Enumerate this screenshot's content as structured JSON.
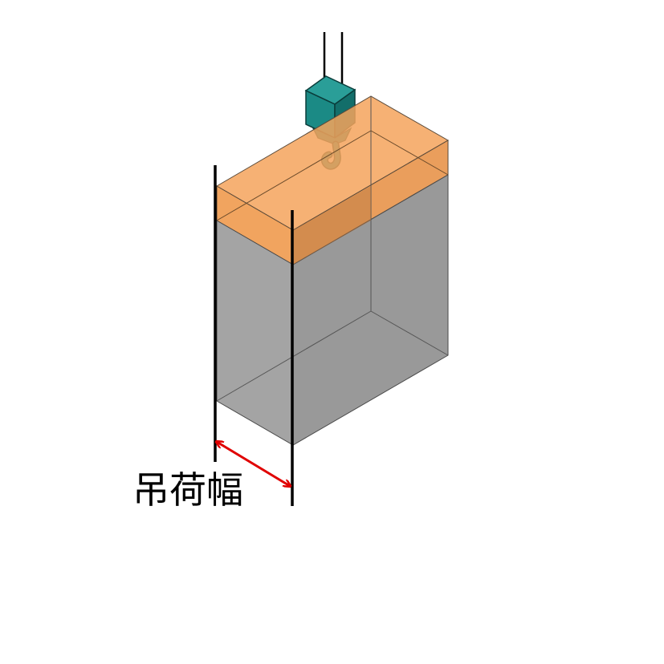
{
  "diagram": {
    "label": "吊荷幅",
    "colors": {
      "background": "#ffffff",
      "load_top_band": "#f5a35c",
      "load_body": "#8c8c8c",
      "hook_block": "#1b8a85",
      "hook_block_dark": "#0f605c",
      "measurement_lines": "#000000",
      "dimension_arrow": "#e00000",
      "label_text": "#000000"
    },
    "icons": {
      "hook": "crane-hook-icon",
      "arrow": "double-headed-arrow-icon"
    }
  }
}
